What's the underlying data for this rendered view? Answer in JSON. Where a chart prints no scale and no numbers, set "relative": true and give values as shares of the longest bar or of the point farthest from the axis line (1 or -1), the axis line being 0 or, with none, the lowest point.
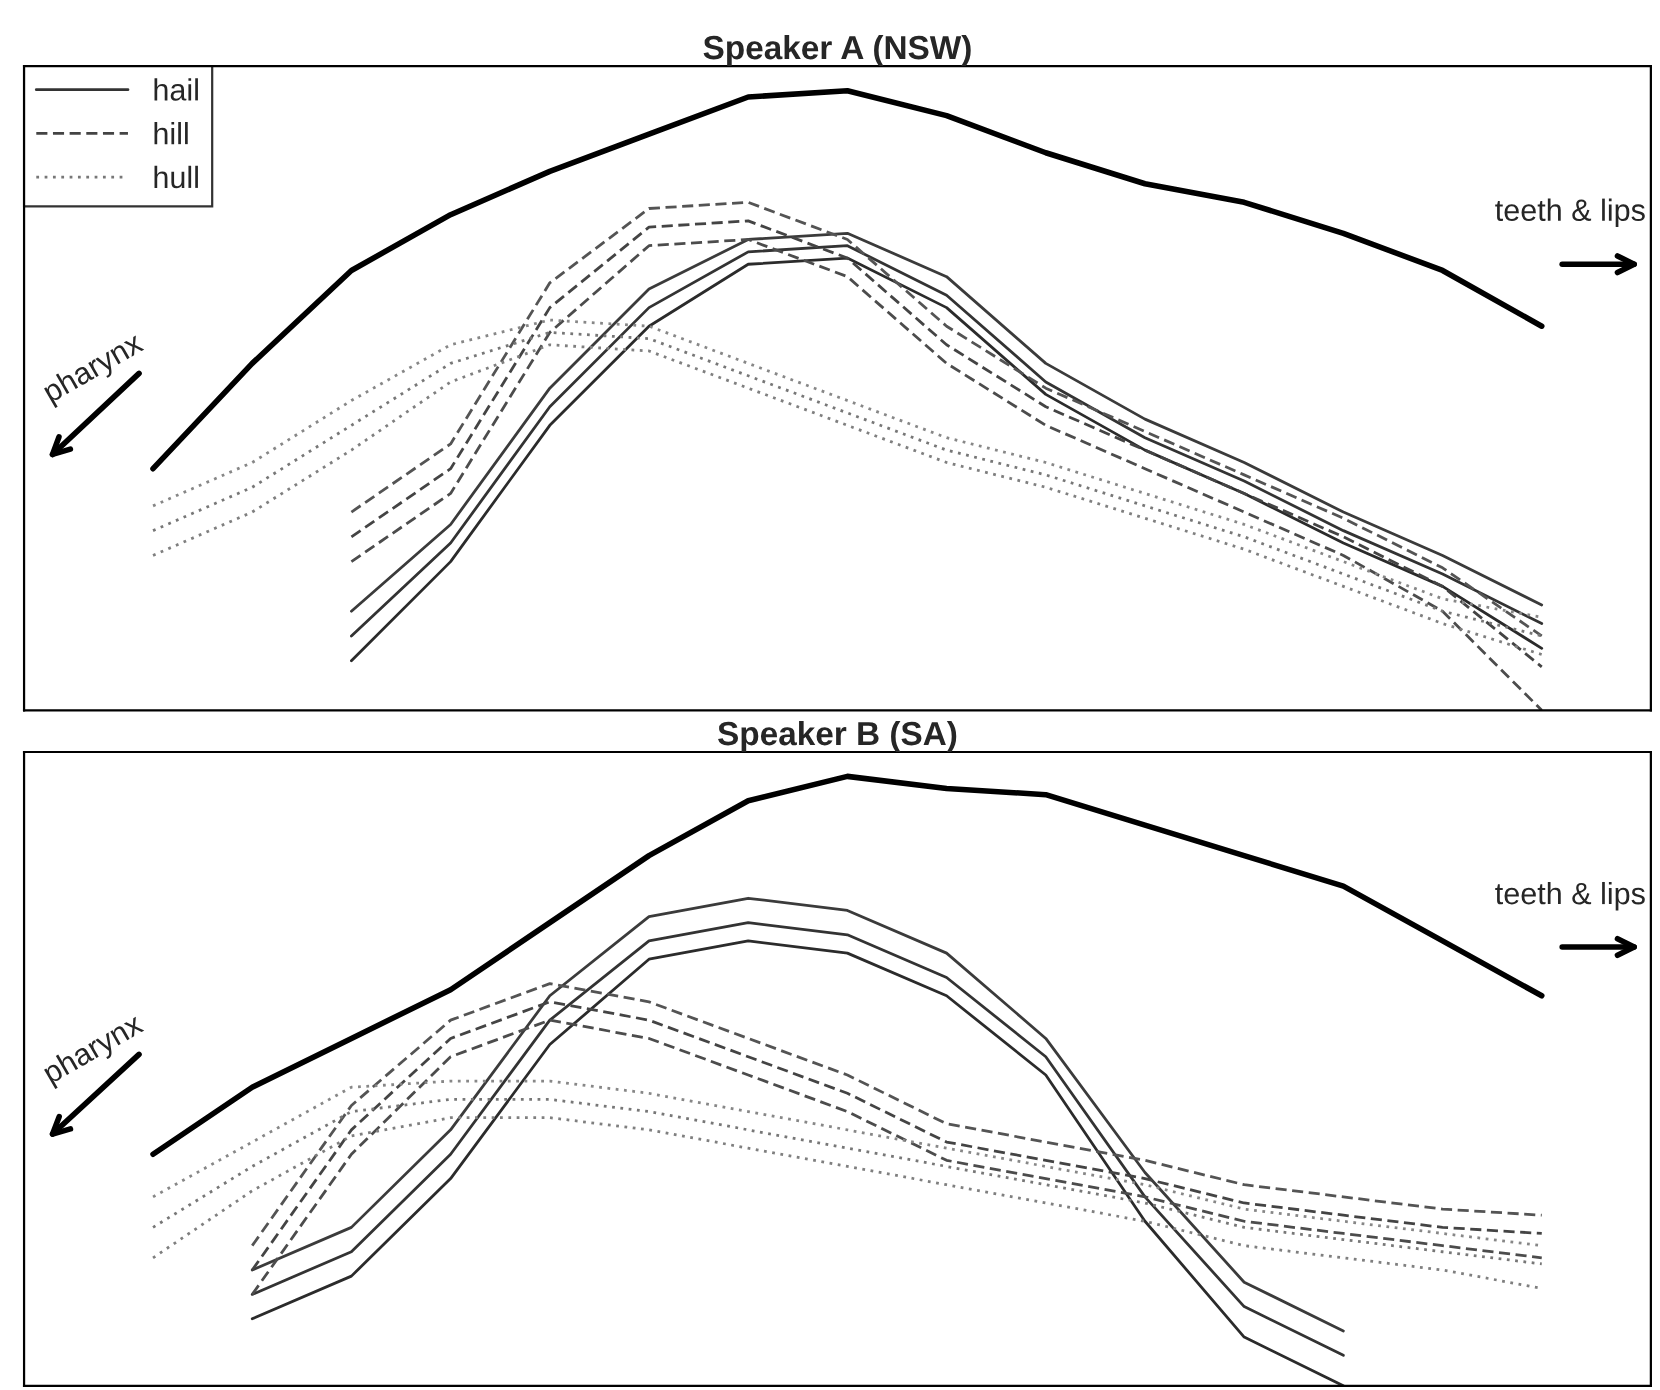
{
  "chart_data": [
    {
      "type": "line",
      "title": "Speaker A (NSW)",
      "relative": true,
      "legend": "top left",
      "tick_labels": false,
      "categories": [
        null,
        null,
        null,
        null,
        null,
        null,
        null,
        null,
        null,
        null,
        null,
        null,
        null,
        null,
        null
      ],
      "annotations": [
        "pharynx",
        "teeth & lips"
      ],
      "series": [
        {
          "color": "#000000",
          "line_style": "solid",
          "values": [
            0.39,
            0.56,
            0.71,
            0.8,
            0.87,
            0.93,
            0.99,
            1.0,
            0.96,
            0.9,
            0.85,
            0.82,
            0.77,
            0.71,
            0.62
          ]
        },
        {
          "name": "hail",
          "color": "#333333",
          "line_style": "solid",
          "values": [
            null,
            null,
            0.12,
            0.27,
            0.49,
            0.65,
            0.74,
            0.75,
            0.67,
            0.53,
            0.44,
            0.37,
            0.29,
            0.22,
            0.14
          ]
        },
        {
          "color": "#2b2b2b",
          "line_style": "solid",
          "values": [
            null,
            null,
            0.08,
            0.24,
            0.46,
            0.62,
            0.72,
            0.73,
            0.65,
            0.51,
            0.42,
            0.35,
            0.27,
            0.2,
            0.1
          ]
        },
        {
          "color": "#3b3b3b",
          "line_style": "solid",
          "values": [
            null,
            null,
            0.16,
            0.3,
            0.52,
            0.68,
            0.76,
            0.77,
            0.7,
            0.56,
            0.47,
            0.4,
            0.32,
            0.25,
            0.17
          ]
        },
        {
          "name": "hill",
          "color": "#444444",
          "line_style": "dashed",
          "values": [
            null,
            null,
            0.28,
            0.39,
            0.65,
            0.78,
            0.79,
            0.73,
            0.59,
            0.49,
            0.42,
            0.35,
            0.28,
            0.2,
            0.07
          ]
        },
        {
          "color": "#4c4c4c",
          "line_style": "dashed",
          "values": [
            null,
            null,
            0.24,
            0.35,
            0.61,
            0.75,
            0.76,
            0.7,
            0.56,
            0.46,
            0.39,
            0.32,
            0.25,
            0.16,
            0.0
          ]
        },
        {
          "color": "#545454",
          "line_style": "dashed",
          "values": [
            null,
            null,
            0.32,
            0.43,
            0.69,
            0.81,
            0.82,
            0.76,
            0.62,
            0.52,
            0.45,
            0.38,
            0.31,
            0.23,
            0.12
          ]
        },
        {
          "name": "hull",
          "color": "#777777",
          "line_style": "dotted",
          "values": [
            0.29,
            0.36,
            0.46,
            0.56,
            0.61,
            0.6,
            0.54,
            0.48,
            0.42,
            0.38,
            0.33,
            0.28,
            0.22,
            0.16,
            0.12
          ]
        },
        {
          "color": "#7f7f7f",
          "line_style": "dotted",
          "values": [
            0.25,
            0.32,
            0.42,
            0.53,
            0.59,
            0.58,
            0.52,
            0.46,
            0.4,
            0.36,
            0.31,
            0.26,
            0.2,
            0.14,
            0.09
          ]
        },
        {
          "color": "#878787",
          "line_style": "dotted",
          "values": [
            0.33,
            0.4,
            0.5,
            0.59,
            0.63,
            0.62,
            0.56,
            0.5,
            0.44,
            0.4,
            0.35,
            0.3,
            0.24,
            0.18,
            0.15
          ]
        }
      ]
    },
    {
      "type": "line",
      "title": "Speaker B (SA)",
      "relative": true,
      "tick_labels": false,
      "categories": [
        null,
        null,
        null,
        null,
        null,
        null,
        null,
        null,
        null,
        null,
        null,
        null,
        null,
        null,
        null
      ],
      "annotations": [
        "pharynx",
        "teeth & lips"
      ],
      "series": [
        {
          "color": "#000000",
          "line_style": "solid",
          "values": [
            0.38,
            0.49,
            0.57,
            0.65,
            0.76,
            0.87,
            0.96,
            1.0,
            0.98,
            0.97,
            0.92,
            0.87,
            0.82,
            0.73,
            0.64
          ]
        },
        {
          "color": "#333333",
          "line_style": "solid",
          "values": [
            null,
            0.15,
            0.22,
            0.38,
            0.6,
            0.73,
            0.76,
            0.74,
            0.67,
            0.54,
            0.31,
            0.13,
            0.05,
            null,
            null
          ]
        },
        {
          "color": "#2b2b2b",
          "line_style": "solid",
          "values": [
            null,
            0.11,
            0.18,
            0.34,
            0.56,
            0.7,
            0.73,
            0.71,
            0.64,
            0.51,
            0.27,
            0.08,
            0.0,
            null,
            null
          ]
        },
        {
          "color": "#3b3b3b",
          "line_style": "solid",
          "values": [
            null,
            0.19,
            0.26,
            0.42,
            0.64,
            0.77,
            0.8,
            0.78,
            0.71,
            0.57,
            0.35,
            0.17,
            0.09,
            null,
            null
          ]
        },
        {
          "color": "#444444",
          "line_style": "dashed",
          "values": [
            null,
            0.19,
            0.42,
            0.57,
            0.63,
            0.6,
            0.54,
            0.48,
            0.4,
            0.37,
            0.34,
            0.3,
            0.28,
            0.26,
            0.25
          ]
        },
        {
          "color": "#4c4c4c",
          "line_style": "dashed",
          "values": [
            null,
            0.15,
            0.38,
            0.54,
            0.6,
            0.57,
            0.51,
            0.45,
            0.37,
            0.34,
            0.31,
            0.27,
            0.25,
            0.23,
            0.21
          ]
        },
        {
          "color": "#545454",
          "line_style": "dashed",
          "values": [
            null,
            0.23,
            0.46,
            0.6,
            0.66,
            0.63,
            0.57,
            0.51,
            0.43,
            0.4,
            0.37,
            0.33,
            0.31,
            0.29,
            0.28
          ]
        },
        {
          "color": "#777777",
          "line_style": "dotted",
          "values": [
            0.26,
            0.36,
            0.45,
            0.47,
            0.47,
            0.45,
            0.42,
            0.39,
            0.36,
            0.33,
            0.3,
            0.26,
            0.24,
            0.22,
            0.2
          ]
        },
        {
          "color": "#7f7f7f",
          "line_style": "dotted",
          "values": [
            0.21,
            0.32,
            0.41,
            0.44,
            0.44,
            0.42,
            0.39,
            0.36,
            0.33,
            0.3,
            0.27,
            0.23,
            0.21,
            0.19,
            0.16
          ]
        },
        {
          "color": "#878787",
          "line_style": "dotted",
          "values": [
            0.31,
            0.4,
            0.49,
            0.5,
            0.5,
            0.48,
            0.45,
            0.42,
            0.39,
            0.36,
            0.33,
            0.29,
            0.27,
            0.25,
            0.23
          ]
        }
      ]
    }
  ]
}
